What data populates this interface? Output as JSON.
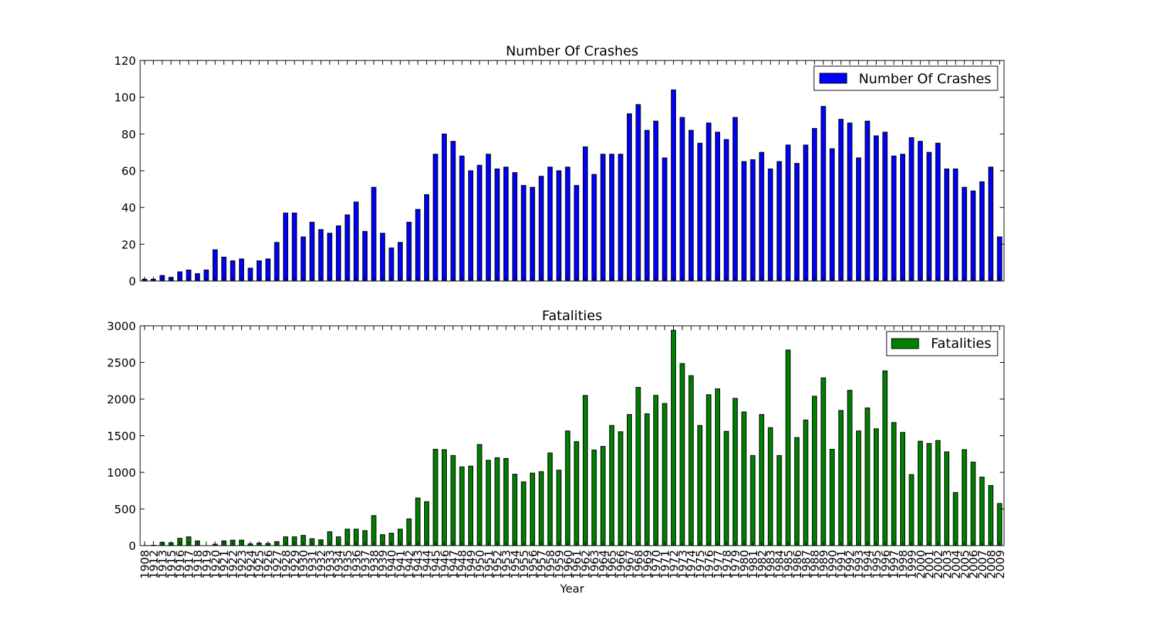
{
  "chart_data": [
    {
      "type": "bar",
      "title": "Number Of Crashes",
      "xlabel": "",
      "ylabel": "",
      "ylim": [
        0,
        120
      ],
      "yticks": [
        0,
        20,
        40,
        60,
        80,
        100,
        120
      ],
      "grid": false,
      "legend_placement": "top-right",
      "color": "#0000ff",
      "series": [
        {
          "name": "Number Of Crashes",
          "values": [
            1,
            1,
            3,
            2,
            5,
            6,
            4,
            6,
            17,
            13,
            11,
            12,
            7,
            11,
            12,
            21,
            37,
            37,
            24,
            32,
            28,
            26,
            30,
            36,
            43,
            27,
            51,
            26,
            18,
            21,
            32,
            39,
            47,
            69,
            80,
            76,
            68,
            60,
            63,
            69,
            61,
            62,
            59,
            52,
            51,
            57,
            62,
            60,
            62,
            52,
            73,
            58,
            69,
            69,
            69,
            91,
            96,
            82,
            87,
            67,
            104,
            89,
            82,
            75,
            86,
            81,
            77,
            89,
            65,
            66,
            70,
            61,
            65,
            74,
            64,
            74,
            83,
            95,
            72,
            88,
            86,
            67,
            87,
            79,
            81,
            68,
            69,
            78,
            76,
            70,
            75,
            61,
            61,
            51,
            49,
            54,
            62,
            24
          ]
        }
      ]
    },
    {
      "type": "bar",
      "title": "Fatalities",
      "xlabel": "Year",
      "ylabel": "",
      "ylim": [
        0,
        3000
      ],
      "yticks": [
        0,
        500,
        1000,
        1500,
        2000,
        2500,
        3000
      ],
      "grid": false,
      "legend_placement": "top-right",
      "color": "#008000",
      "categories": [
        "1908",
        "1912",
        "1913",
        "1915",
        "1916",
        "1917",
        "1918",
        "1919",
        "1920",
        "1921",
        "1922",
        "1923",
        "1924",
        "1925",
        "1926",
        "1927",
        "1928",
        "1929",
        "1930",
        "1931",
        "1932",
        "1933",
        "1934",
        "1935",
        "1936",
        "1937",
        "1938",
        "1939",
        "1940",
        "1941",
        "1942",
        "1943",
        "1944",
        "1945",
        "1946",
        "1947",
        "1948",
        "1949",
        "1950",
        "1951",
        "1952",
        "1953",
        "1954",
        "1955",
        "1956",
        "1957",
        "1958",
        "1959",
        "1960",
        "1961",
        "1962",
        "1963",
        "1964",
        "1965",
        "1966",
        "1967",
        "1968",
        "1969",
        "1970",
        "1971",
        "1972",
        "1973",
        "1974",
        "1975",
        "1976",
        "1977",
        "1978",
        "1979",
        "1980",
        "1981",
        "1982",
        "1983",
        "1984",
        "1985",
        "1986",
        "1987",
        "1988",
        "1989",
        "1990",
        "1991",
        "1992",
        "1993",
        "1994",
        "1995",
        "1996",
        "1997",
        "1998",
        "1999",
        "2000",
        "2001",
        "2002",
        "2003",
        "2004",
        "2005",
        "2006",
        "2007",
        "2008",
        "2009"
      ],
      "series": [
        {
          "name": "Fatalities",
          "values": [
            1,
            5,
            45,
            40,
            100,
            120,
            65,
            0,
            20,
            65,
            75,
            75,
            25,
            35,
            30,
            55,
            120,
            120,
            140,
            95,
            80,
            190,
            120,
            225,
            225,
            205,
            410,
            150,
            170,
            225,
            365,
            650,
            600,
            1315,
            1310,
            1230,
            1075,
            1085,
            1380,
            1165,
            1200,
            1190,
            975,
            870,
            990,
            1010,
            1265,
            1030,
            1565,
            1420,
            2050,
            1305,
            1355,
            1640,
            1555,
            1790,
            2160,
            1800,
            2050,
            1940,
            2940,
            2485,
            2320,
            1640,
            2060,
            2140,
            1560,
            2010,
            1825,
            1230,
            1790,
            1610,
            1230,
            2670,
            1475,
            1715,
            2040,
            2290,
            1315,
            1845,
            2120,
            1565,
            1880,
            1595,
            2385,
            1680,
            1545,
            970,
            1425,
            1395,
            1435,
            1280,
            725,
            1310,
            1140,
            935,
            820,
            575
          ]
        }
      ]
    }
  ]
}
